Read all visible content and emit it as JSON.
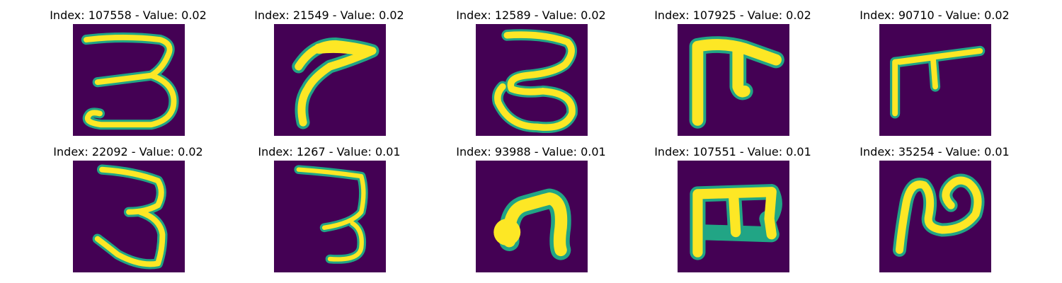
{
  "figure": {
    "colors": {
      "background": "#440154",
      "stroke": "#fde725",
      "edge": "#21a585"
    },
    "panels": [
      {
        "title": "Index: 107558 - Value: 0.02",
        "glyph": "three-curl"
      },
      {
        "title": "Index: 21549 - Value: 0.02",
        "glyph": "hook"
      },
      {
        "title": "Index: 12589 - Value: 0.02",
        "glyph": "three-round"
      },
      {
        "title": "Index: 107925 - Value: 0.02",
        "glyph": "gate-bold"
      },
      {
        "title": "Index: 90710 - Value: 0.02",
        "glyph": "gate-thin"
      },
      {
        "title": "Index: 22092 - Value: 0.02",
        "glyph": "three-tall"
      },
      {
        "title": "Index: 1267 - Value: 0.01",
        "glyph": "three-thin"
      },
      {
        "title": "Index: 93988 - Value: 0.01",
        "glyph": "arch"
      },
      {
        "title": "Index: 107551 - Value: 0.01",
        "glyph": "comb"
      },
      {
        "title": "Index: 35254 - Value: 0.01",
        "glyph": "loop"
      }
    ]
  }
}
